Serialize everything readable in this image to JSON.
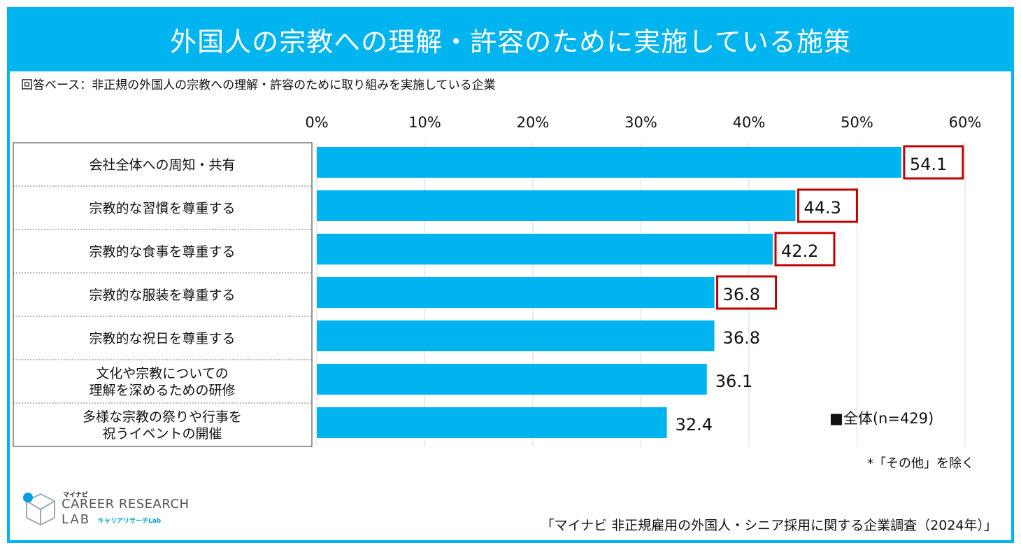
{
  "title": "外国人の宗教への理解・許容のために実施している施策",
  "base_note": "回答ベース：非正規の外国人の宗教への理解・許容のために取り組みを実施している企業",
  "colors": {
    "accent": "#00b4ef",
    "highlight": "#c00000"
  },
  "chart_data": {
    "type": "bar",
    "orientation": "horizontal",
    "title": "外国人の宗教への理解・許容のために実施している施策",
    "xlim": [
      0,
      60
    ],
    "x_ticks": [
      "0%",
      "10%",
      "20%",
      "30%",
      "40%",
      "50%",
      "60%"
    ],
    "categories": [
      [
        "会社全体への周知・共有"
      ],
      [
        "宗教的な習慣を尊重する"
      ],
      [
        "宗教的な食事を尊重する"
      ],
      [
        "宗教的な服装を尊重する"
      ],
      [
        "宗教的な祝日を尊重する"
      ],
      [
        "文化や宗教についての",
        "理解を深めるための研修"
      ],
      [
        "多様な宗教の祭りや行事を",
        "祝うイベントの開催"
      ]
    ],
    "series": [
      {
        "name": "全体(n=429)",
        "values": [
          54.1,
          44.3,
          42.2,
          36.8,
          36.8,
          36.1,
          32.4
        ]
      }
    ],
    "value_labels": [
      "54.1",
      "44.3",
      "42.2",
      "36.8",
      "36.8",
      "36.1",
      "32.4"
    ],
    "highlighted": [
      true,
      true,
      true,
      true,
      false,
      false,
      false
    ],
    "legend": "■全体(n=429)",
    "legend_position": "bottom-right"
  },
  "footnote": "*「その他」を除く",
  "source": "「マイナビ 非正規雇用の外国人・シニア採用に関する企業調査（2024年）」",
  "logo": {
    "brand": "マイナビ",
    "name_line1": "CAREER RESEARCH",
    "name_line2": "LAB",
    "kana": "キャリアリサーチLab"
  }
}
